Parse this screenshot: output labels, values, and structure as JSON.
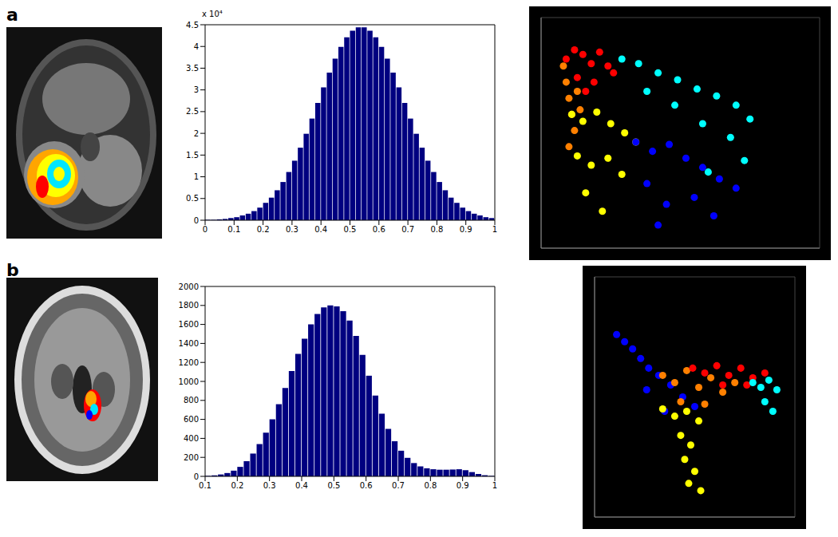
{
  "panel_labels": [
    "a",
    "b"
  ],
  "chart_data": [
    {
      "type": "histogram",
      "color": "#000080",
      "annotations": [
        "x 10⁴"
      ],
      "xlim": [
        0,
        1
      ],
      "xticks": [
        0,
        0.1,
        0.2,
        0.3,
        0.4,
        0.5,
        0.6,
        0.7,
        0.8,
        0.9,
        1
      ],
      "ylim": [
        0,
        4.5
      ],
      "yticks": [
        0,
        0.5,
        1,
        1.5,
        2,
        2.5,
        3,
        3.5,
        4,
        4.5
      ],
      "bins": [
        0,
        0.02,
        0.04,
        0.06,
        0.08,
        0.1,
        0.12,
        0.14,
        0.16,
        0.18,
        0.2,
        0.22,
        0.24,
        0.26,
        0.28,
        0.3,
        0.32,
        0.34,
        0.36,
        0.38,
        0.4,
        0.42,
        0.44,
        0.46,
        0.48,
        0.5,
        0.52,
        0.54,
        0.56,
        0.58,
        0.6,
        0.62,
        0.64,
        0.66,
        0.68,
        0.7,
        0.72,
        0.74,
        0.76,
        0.78,
        0.8,
        0.82,
        0.84,
        0.86,
        0.88,
        0.9,
        0.92,
        0.94,
        0.96,
        0.98,
        1
      ],
      "values": [
        0.01,
        0.01,
        0.02,
        0.03,
        0.05,
        0.07,
        0.11,
        0.15,
        0.21,
        0.29,
        0.4,
        0.52,
        0.69,
        0.88,
        1.11,
        1.37,
        1.67,
        1.99,
        2.34,
        2.7,
        3.06,
        3.4,
        3.72,
        3.99,
        4.21,
        4.36,
        4.44,
        4.44,
        4.36,
        4.21,
        3.99,
        3.72,
        3.4,
        3.06,
        2.7,
        2.34,
        1.99,
        1.67,
        1.37,
        1.11,
        0.88,
        0.69,
        0.52,
        0.4,
        0.29,
        0.21,
        0.15,
        0.11,
        0.07,
        0.05
      ]
    },
    {
      "type": "scatter",
      "grid": true,
      "tick_labels": false,
      "xlim": [
        0,
        10
      ],
      "xticks": [
        0,
        2,
        4,
        6,
        8,
        10
      ],
      "ylim": [
        0,
        10
      ],
      "yticks": [
        0,
        2,
        4,
        6,
        8,
        10
      ],
      "series": [
        {
          "color": "#ff0000",
          "x": [
            0.9,
            1.2,
            1.5,
            1.8,
            2.1,
            2.4,
            1.3,
            1.9,
            2.6,
            1.6
          ],
          "y": [
            8.2,
            8.6,
            8.4,
            8.0,
            8.5,
            7.9,
            7.4,
            7.2,
            7.6,
            6.8
          ]
        },
        {
          "color": "#ff8000",
          "x": [
            0.8,
            0.9,
            1.0,
            1.1,
            1.2,
            1.0,
            1.3,
            1.4
          ],
          "y": [
            7.9,
            7.2,
            6.5,
            5.8,
            5.1,
            4.4,
            6.8,
            6.0
          ]
        },
        {
          "color": "#ffff00",
          "x": [
            1.1,
            1.5,
            2.0,
            2.5,
            3.0,
            3.4,
            1.3,
            1.8,
            2.4,
            2.9,
            1.6,
            2.2
          ],
          "y": [
            5.8,
            5.5,
            5.9,
            5.4,
            5.0,
            4.6,
            4.0,
            3.6,
            3.9,
            3.2,
            2.4,
            1.6
          ]
        },
        {
          "color": "#0000ff",
          "x": [
            3.4,
            4.0,
            4.6,
            5.2,
            5.8,
            6.4,
            7.0,
            3.8,
            4.5,
            5.5,
            6.2,
            4.2
          ],
          "y": [
            4.6,
            4.2,
            4.5,
            3.9,
            3.5,
            3.0,
            2.6,
            2.8,
            1.9,
            2.2,
            1.4,
            1.0
          ]
        },
        {
          "color": "#00ffff",
          "x": [
            2.9,
            3.5,
            4.2,
            4.9,
            5.6,
            6.3,
            7.0,
            7.5,
            3.8,
            4.8,
            5.8,
            6.8,
            7.3,
            6.0
          ],
          "y": [
            8.2,
            8.0,
            7.6,
            7.3,
            6.9,
            6.6,
            6.2,
            5.6,
            6.8,
            6.2,
            5.4,
            4.8,
            3.8,
            3.3
          ]
        }
      ]
    },
    {
      "type": "histogram",
      "color": "#000080",
      "xlim": [
        0.1,
        1
      ],
      "xticks": [
        0.1,
        0.2,
        0.3,
        0.4,
        0.5,
        0.6,
        0.7,
        0.8,
        0.9,
        1
      ],
      "ylim": [
        0,
        2000
      ],
      "yticks": [
        0,
        200,
        400,
        600,
        800,
        1000,
        1200,
        1400,
        1600,
        1800,
        2000
      ],
      "bins": [
        0.1,
        0.12,
        0.14,
        0.16,
        0.18,
        0.2,
        0.22,
        0.24,
        0.26,
        0.28,
        0.3,
        0.32,
        0.34,
        0.36,
        0.38,
        0.4,
        0.42,
        0.44,
        0.46,
        0.48,
        0.5,
        0.52,
        0.54,
        0.56,
        0.58,
        0.6,
        0.62,
        0.64,
        0.66,
        0.68,
        0.7,
        0.72,
        0.74,
        0.76,
        0.78,
        0.8,
        0.82,
        0.84,
        0.86,
        0.88,
        0.9,
        0.92,
        0.94,
        0.96,
        0.98,
        1
      ],
      "values": [
        5,
        10,
        20,
        35,
        60,
        100,
        160,
        240,
        340,
        460,
        600,
        760,
        930,
        1110,
        1290,
        1450,
        1600,
        1710,
        1780,
        1800,
        1790,
        1740,
        1640,
        1480,
        1280,
        1060,
        850,
        660,
        500,
        370,
        270,
        195,
        140,
        105,
        85,
        75,
        70,
        70,
        72,
        75,
        65,
        45,
        25,
        12,
        5
      ]
    },
    {
      "type": "scatter",
      "grid": true,
      "tick_labels": false,
      "xlim": [
        0,
        10
      ],
      "xticks": [
        0,
        2,
        4,
        6,
        8,
        10
      ],
      "ylim": [
        0,
        10
      ],
      "yticks": [
        0,
        2,
        4,
        6,
        8,
        10
      ],
      "series": [
        {
          "color": "#0000ff",
          "x": [
            1.1,
            1.5,
            1.9,
            2.3,
            2.7,
            3.2,
            3.8,
            4.4,
            5.0,
            2.6,
            3.5
          ],
          "y": [
            7.6,
            7.3,
            7.0,
            6.6,
            6.2,
            5.9,
            5.5,
            5.0,
            4.6,
            5.3,
            4.4
          ]
        },
        {
          "color": "#ff8000",
          "x": [
            3.4,
            4.0,
            4.6,
            5.2,
            5.8,
            6.4,
            7.0,
            4.3,
            5.5
          ],
          "y": [
            5.9,
            5.6,
            6.1,
            5.4,
            5.8,
            5.2,
            5.6,
            4.8,
            4.7
          ]
        },
        {
          "color": "#ff0000",
          "x": [
            4.9,
            5.5,
            6.1,
            6.7,
            7.3,
            7.9,
            8.5,
            6.4,
            7.6
          ],
          "y": [
            6.2,
            6.0,
            6.3,
            5.9,
            6.2,
            5.8,
            6.0,
            5.5,
            5.5
          ]
        },
        {
          "color": "#00ffff",
          "x": [
            7.9,
            8.3,
            8.7,
            9.1,
            8.5,
            8.9
          ],
          "y": [
            5.6,
            5.4,
            5.7,
            5.3,
            4.8,
            4.4
          ]
        },
        {
          "color": "#ffff00",
          "x": [
            3.4,
            4.0,
            4.6,
            5.2,
            4.3,
            4.8,
            4.5,
            5.0,
            4.7,
            5.3
          ],
          "y": [
            4.5,
            4.2,
            4.4,
            4.0,
            3.4,
            3.0,
            2.4,
            1.9,
            1.4,
            1.1
          ]
        }
      ]
    }
  ]
}
